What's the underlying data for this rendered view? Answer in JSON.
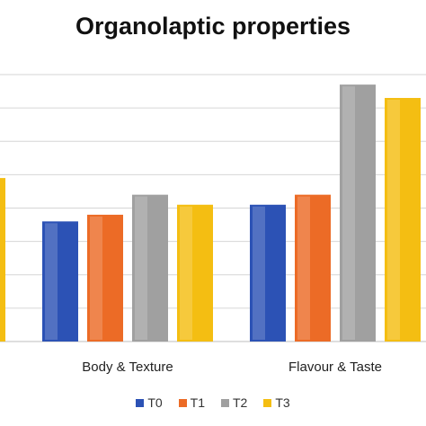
{
  "chart_data": {
    "type": "bar",
    "title": "Organolaptic properties",
    "categories": [
      "",
      "Body & Texture",
      "Flavour & Taste"
    ],
    "series": [
      {
        "name": "T0",
        "values": [
          null,
          3.6,
          4.1
        ],
        "color": "#2c52b5"
      },
      {
        "name": "T1",
        "values": [
          null,
          3.8,
          4.4
        ],
        "color": "#ec6b26"
      },
      {
        "name": "T2",
        "values": [
          null,
          4.4,
          7.7
        ],
        "color": "#a0a0a0"
      },
      {
        "name": "T3",
        "values": [
          4.9,
          4.1,
          7.3
        ],
        "color": "#f4be12"
      }
    ],
    "ylim": [
      0,
      8
    ],
    "grid": true,
    "legend": "bottom"
  }
}
